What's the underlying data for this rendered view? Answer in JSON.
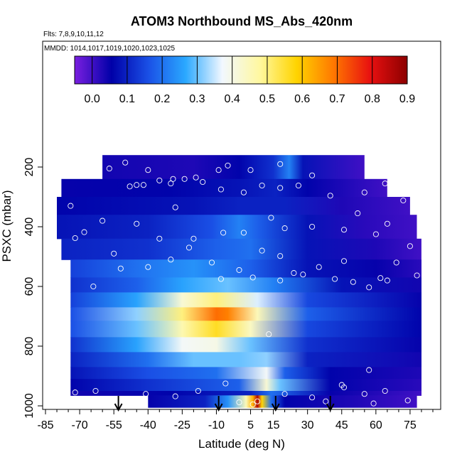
{
  "chart_data": {
    "type": "heatmap",
    "title": "ATOM3 Northbound MS_Abs_420nm",
    "subtitle_flights": "Flts: 7,8,9,10,11,12",
    "subtitle_dates": "MMDD: 1014,1017,1019,1020,1023,1025",
    "xlabel": "Latitude (deg N)",
    "ylabel": "PSXC (mbar)",
    "xlim": [
      -85,
      85
    ],
    "ylim": [
      1000,
      80
    ],
    "y_reversed": true,
    "xticks": [
      -85,
      -70,
      -55,
      -40,
      -25,
      -10,
      5,
      15,
      30,
      45,
      60,
      75
    ],
    "yticks": [
      200,
      400,
      600,
      800,
      1000
    ],
    "colorbar": {
      "ticks": [
        0.0,
        0.1,
        0.2,
        0.3,
        0.4,
        0.5,
        0.6,
        0.7,
        0.8,
        0.9
      ],
      "tick_labels": [
        "0.0",
        "0.1",
        "0.2",
        "0.3",
        "0.4",
        "0.5",
        "0.6",
        "0.7",
        "0.8",
        "0.9"
      ],
      "range": [
        -0.05,
        0.9
      ],
      "colors": [
        "#7a1fe0",
        "#0000a8",
        "#1a50e6",
        "#2aa8ff",
        "#f2f8ff",
        "#fff8a0",
        "#ffd400",
        "#ff7800",
        "#e81010",
        "#8c0000"
      ]
    },
    "arrows_latitude": [
      -53,
      -9,
      16,
      40
    ],
    "bands": [
      {
        "p_top": 160,
        "p_bot": 240,
        "lat_start": -60,
        "lat_end": 55,
        "profile": [
          [
            -60,
            0.04
          ],
          [
            -20,
            0.03
          ],
          [
            0,
            0.06
          ],
          [
            15,
            0.12
          ],
          [
            22,
            0.22
          ],
          [
            28,
            0.08
          ],
          [
            55,
            0.0
          ]
        ]
      },
      {
        "p_top": 240,
        "p_bot": 300,
        "lat_start": -78,
        "lat_end": 65,
        "profile": [
          [
            -78,
            0.05
          ],
          [
            -30,
            0.06
          ],
          [
            0,
            0.08
          ],
          [
            16,
            0.1
          ],
          [
            30,
            0.06
          ],
          [
            65,
            0.0
          ]
        ]
      },
      {
        "p_top": 300,
        "p_bot": 360,
        "lat_start": -80,
        "lat_end": 75,
        "profile": [
          [
            -80,
            0.06
          ],
          [
            -20,
            0.08
          ],
          [
            0,
            0.1
          ],
          [
            20,
            0.1
          ],
          [
            45,
            0.03
          ],
          [
            75,
            0.0
          ]
        ]
      },
      {
        "p_top": 360,
        "p_bot": 440,
        "lat_start": -80,
        "lat_end": 78,
        "profile": [
          [
            -80,
            0.08
          ],
          [
            -40,
            0.1
          ],
          [
            -12,
            0.16
          ],
          [
            0,
            0.22
          ],
          [
            8,
            0.18
          ],
          [
            30,
            0.08
          ],
          [
            55,
            0.02
          ],
          [
            78,
            0.0
          ]
        ]
      },
      {
        "p_top": 440,
        "p_bot": 510,
        "lat_start": -78,
        "lat_end": 80,
        "profile": [
          [
            -78,
            0.1
          ],
          [
            -40,
            0.12
          ],
          [
            -10,
            0.18
          ],
          [
            5,
            0.2
          ],
          [
            30,
            0.08
          ],
          [
            60,
            0.03
          ],
          [
            80,
            0.0
          ]
        ]
      },
      {
        "p_top": 510,
        "p_bot": 570,
        "lat_start": -74,
        "lat_end": 80,
        "profile": [
          [
            -74,
            0.14
          ],
          [
            -45,
            0.2
          ],
          [
            -20,
            0.24
          ],
          [
            5,
            0.18
          ],
          [
            30,
            0.08
          ],
          [
            60,
            0.05
          ],
          [
            80,
            0.02
          ]
        ]
      },
      {
        "p_top": 570,
        "p_bot": 620,
        "lat_start": -74,
        "lat_end": 80,
        "profile": [
          [
            -74,
            0.12
          ],
          [
            -45,
            0.18
          ],
          [
            -25,
            0.26
          ],
          [
            -5,
            0.3
          ],
          [
            15,
            0.22
          ],
          [
            45,
            0.08
          ],
          [
            80,
            0.04
          ]
        ]
      },
      {
        "p_top": 620,
        "p_bot": 670,
        "lat_start": -74,
        "lat_end": 80,
        "profile": [
          [
            -74,
            0.14
          ],
          [
            -45,
            0.26
          ],
          [
            -25,
            0.42
          ],
          [
            -10,
            0.5
          ],
          [
            8,
            0.36
          ],
          [
            30,
            0.15
          ],
          [
            80,
            0.05
          ]
        ]
      },
      {
        "p_top": 670,
        "p_bot": 715,
        "lat_start": -74,
        "lat_end": 80,
        "profile": [
          [
            -74,
            0.16
          ],
          [
            -45,
            0.32
          ],
          [
            -25,
            0.5
          ],
          [
            -10,
            0.7
          ],
          [
            -5,
            0.68
          ],
          [
            8,
            0.45
          ],
          [
            30,
            0.18
          ],
          [
            80,
            0.06
          ]
        ]
      },
      {
        "p_top": 715,
        "p_bot": 770,
        "lat_start": -74,
        "lat_end": 80,
        "profile": [
          [
            -74,
            0.16
          ],
          [
            -45,
            0.3
          ],
          [
            -25,
            0.46
          ],
          [
            -10,
            0.56
          ],
          [
            5,
            0.44
          ],
          [
            30,
            0.15
          ],
          [
            80,
            0.06
          ]
        ]
      },
      {
        "p_top": 770,
        "p_bot": 820,
        "lat_start": -74,
        "lat_end": 80,
        "profile": [
          [
            -74,
            0.12
          ],
          [
            -45,
            0.26
          ],
          [
            -25,
            0.38
          ],
          [
            -10,
            0.4
          ],
          [
            5,
            0.3
          ],
          [
            30,
            0.12
          ],
          [
            80,
            0.05
          ]
        ]
      },
      {
        "p_top": 820,
        "p_bot": 870,
        "lat_start": -74,
        "lat_end": 80,
        "profile": [
          [
            -74,
            0.1
          ],
          [
            -40,
            0.2
          ],
          [
            -20,
            0.3
          ],
          [
            0,
            0.3
          ],
          [
            12,
            0.32
          ],
          [
            30,
            0.1
          ],
          [
            80,
            0.04
          ]
        ]
      },
      {
        "p_top": 870,
        "p_bot": 910,
        "lat_start": -74,
        "lat_end": 80,
        "profile": [
          [
            -74,
            0.08
          ],
          [
            -40,
            0.16
          ],
          [
            -10,
            0.2
          ],
          [
            12,
            0.38
          ],
          [
            20,
            0.18
          ],
          [
            40,
            0.06
          ],
          [
            80,
            0.03
          ]
        ]
      },
      {
        "p_top": 910,
        "p_bot": 950,
        "lat_start": -74,
        "lat_end": 80,
        "profile": [
          [
            -74,
            0.06
          ],
          [
            -40,
            0.12
          ],
          [
            0,
            0.18
          ],
          [
            12,
            0.42
          ],
          [
            18,
            0.3
          ],
          [
            40,
            0.06
          ],
          [
            80,
            0.02
          ]
        ]
      },
      {
        "p_top": 950,
        "p_bot": 965,
        "lat_start": -74,
        "lat_end": 80,
        "profile": [
          [
            -74,
            0.04
          ],
          [
            -30,
            0.06
          ],
          [
            5,
            0.1
          ],
          [
            14,
            0.2
          ],
          [
            40,
            0.05
          ],
          [
            80,
            0.0
          ]
        ]
      },
      {
        "p_top": 965,
        "p_bot": 1005,
        "lat_start": -40,
        "lat_end": 78,
        "profile": [
          [
            -40,
            0.05
          ],
          [
            -15,
            0.1
          ],
          [
            -5,
            0.24
          ],
          [
            3,
            0.45
          ],
          [
            6,
            0.62
          ],
          [
            8,
            0.86
          ],
          [
            10,
            0.58
          ],
          [
            14,
            0.2
          ],
          [
            20,
            0.06
          ],
          [
            50,
            0.03
          ],
          [
            78,
            0.0
          ]
        ]
      }
    ],
    "points": [
      [
        -65,
        207
      ],
      [
        -57,
        205
      ],
      [
        -50,
        185
      ],
      [
        -40,
        210
      ],
      [
        -29,
        240
      ],
      [
        -35,
        245
      ],
      [
        -19,
        235
      ],
      [
        -5,
        195
      ],
      [
        -9,
        210
      ],
      [
        5,
        210
      ],
      [
        18,
        190
      ],
      [
        32,
        228
      ],
      [
        -77,
        212
      ],
      [
        -82,
        335
      ],
      [
        -68,
        220
      ],
      [
        -45,
        260
      ],
      [
        -48,
        265
      ],
      [
        -42,
        260
      ],
      [
        -30,
        255
      ],
      [
        -24,
        240
      ],
      [
        -16,
        250
      ],
      [
        -8,
        275
      ],
      [
        2,
        285
      ],
      [
        10,
        262
      ],
      [
        18,
        270
      ],
      [
        26,
        262
      ],
      [
        40,
        296
      ],
      [
        55,
        285
      ],
      [
        64,
        255
      ],
      [
        72,
        312
      ],
      [
        -68,
        418
      ],
      [
        -74,
        330
      ],
      [
        -60,
        380
      ],
      [
        -45,
        390
      ],
      [
        -35,
        440
      ],
      [
        -28,
        335
      ],
      [
        -20,
        440
      ],
      [
        -7,
        420
      ],
      [
        2,
        420
      ],
      [
        14,
        370
      ],
      [
        20,
        405
      ],
      [
        32,
        400
      ],
      [
        46,
        410
      ],
      [
        52,
        355
      ],
      [
        60,
        425
      ],
      [
        65,
        390
      ],
      [
        75,
        465
      ],
      [
        -72,
        438
      ],
      [
        -55,
        490
      ],
      [
        -40,
        535
      ],
      [
        -30,
        510
      ],
      [
        -22,
        470
      ],
      [
        -12,
        520
      ],
      [
        0,
        545
      ],
      [
        10,
        480
      ],
      [
        18,
        498
      ],
      [
        24,
        555
      ],
      [
        35,
        535
      ],
      [
        46,
        515
      ],
      [
        50,
        585
      ],
      [
        62,
        572
      ],
      [
        69,
        520
      ],
      [
        78,
        563
      ],
      [
        -79,
        570
      ],
      [
        -64,
        600
      ],
      [
        -52,
        540
      ],
      [
        -8,
        575
      ],
      [
        6,
        570
      ],
      [
        18,
        580
      ],
      [
        28,
        560
      ],
      [
        42,
        575
      ],
      [
        57,
        603
      ],
      [
        65,
        580
      ],
      [
        13,
        760
      ],
      [
        -72,
        955
      ],
      [
        -41,
        960
      ],
      [
        -28,
        968
      ],
      [
        -18,
        950
      ],
      [
        -6,
        925
      ],
      [
        8,
        985
      ],
      [
        20,
        960
      ],
      [
        32,
        972
      ],
      [
        46,
        938
      ],
      [
        55,
        960
      ],
      [
        64,
        950
      ],
      [
        74,
        982
      ],
      [
        -63,
        950
      ],
      [
        0,
        988
      ],
      [
        6,
        995
      ],
      [
        38,
        985
      ],
      [
        59,
        992
      ],
      [
        45,
        930
      ],
      [
        57,
        880
      ]
    ]
  }
}
